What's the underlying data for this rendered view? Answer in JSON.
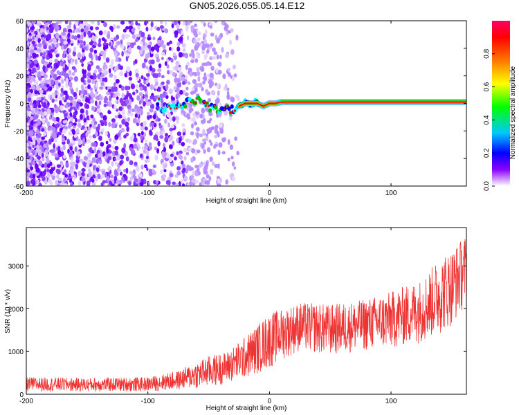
{
  "title": "GN05.2026.055.05.14.E12",
  "chart_data": [
    {
      "type": "heatmap",
      "xlabel": "Height of straight line (km)",
      "ylabel": "Frequency (Hz)",
      "xlim": [
        -200,
        162
      ],
      "ylim": [
        -60,
        60
      ],
      "xticks": [
        -200,
        -100,
        0,
        100
      ],
      "yticks": [
        60,
        40,
        20,
        0,
        -20,
        -40,
        -60
      ],
      "colorbar": {
        "label": "Normalized spectral amplitude",
        "range": [
          0,
          1
        ],
        "ticks": [
          "0.0",
          "0.2",
          "0.4",
          "0.6",
          "0.8"
        ],
        "colormap": [
          "#ffffff",
          "#8b00ff",
          "#0000ff",
          "#00c8ff",
          "#00ff00",
          "#ffff00",
          "#ff8000",
          "#ff0000",
          "#ff0066"
        ]
      },
      "ridge": {
        "description_points": [
          [
            -90,
            -4
          ],
          [
            -75,
            -2
          ],
          [
            -60,
            3
          ],
          [
            -50,
            -3
          ],
          [
            -40,
            -5
          ],
          [
            -30,
            -4
          ],
          [
            -20,
            0
          ],
          [
            -10,
            0
          ],
          [
            -5,
            -2
          ],
          [
            0,
            0
          ],
          [
            5,
            0
          ],
          [
            10,
            1
          ],
          [
            162,
            1
          ]
        ],
        "colors": {
          "noise": "#8b00ff",
          "weak": "#0000ff",
          "mid": "#00ffff",
          "strong": "#ff0000",
          "edge": "#00c000",
          "core": "#ffd700"
        }
      }
    },
    {
      "type": "line",
      "xlabel": "Height of straight line (km)",
      "ylabel": "SNR (10 * v/v)",
      "xlim": [
        -200,
        162
      ],
      "ylim": [
        0,
        3900
      ],
      "xticks": [
        -200,
        -100,
        0,
        100
      ],
      "yticks": [
        0,
        1000,
        2000,
        3000
      ],
      "color": "#ee3333",
      "envelope": [
        {
          "x": -200,
          "low": 60,
          "high": 400
        },
        {
          "x": -150,
          "low": 60,
          "high": 380
        },
        {
          "x": -100,
          "low": 60,
          "high": 400
        },
        {
          "x": -75,
          "low": 100,
          "high": 550
        },
        {
          "x": -50,
          "low": 150,
          "high": 900
        },
        {
          "x": -35,
          "low": 250,
          "high": 1000
        },
        {
          "x": -20,
          "low": 350,
          "high": 1350
        },
        {
          "x": 0,
          "low": 600,
          "high": 1900
        },
        {
          "x": 10,
          "low": 800,
          "high": 2000
        },
        {
          "x": 25,
          "low": 1000,
          "high": 2150
        },
        {
          "x": 50,
          "low": 900,
          "high": 2100
        },
        {
          "x": 75,
          "low": 1000,
          "high": 2200
        },
        {
          "x": 100,
          "low": 1050,
          "high": 2400
        },
        {
          "x": 125,
          "low": 1200,
          "high": 2700
        },
        {
          "x": 140,
          "low": 1400,
          "high": 3200
        },
        {
          "x": 150,
          "low": 1600,
          "high": 3400
        },
        {
          "x": 162,
          "low": 2100,
          "high": 3750
        }
      ]
    }
  ]
}
